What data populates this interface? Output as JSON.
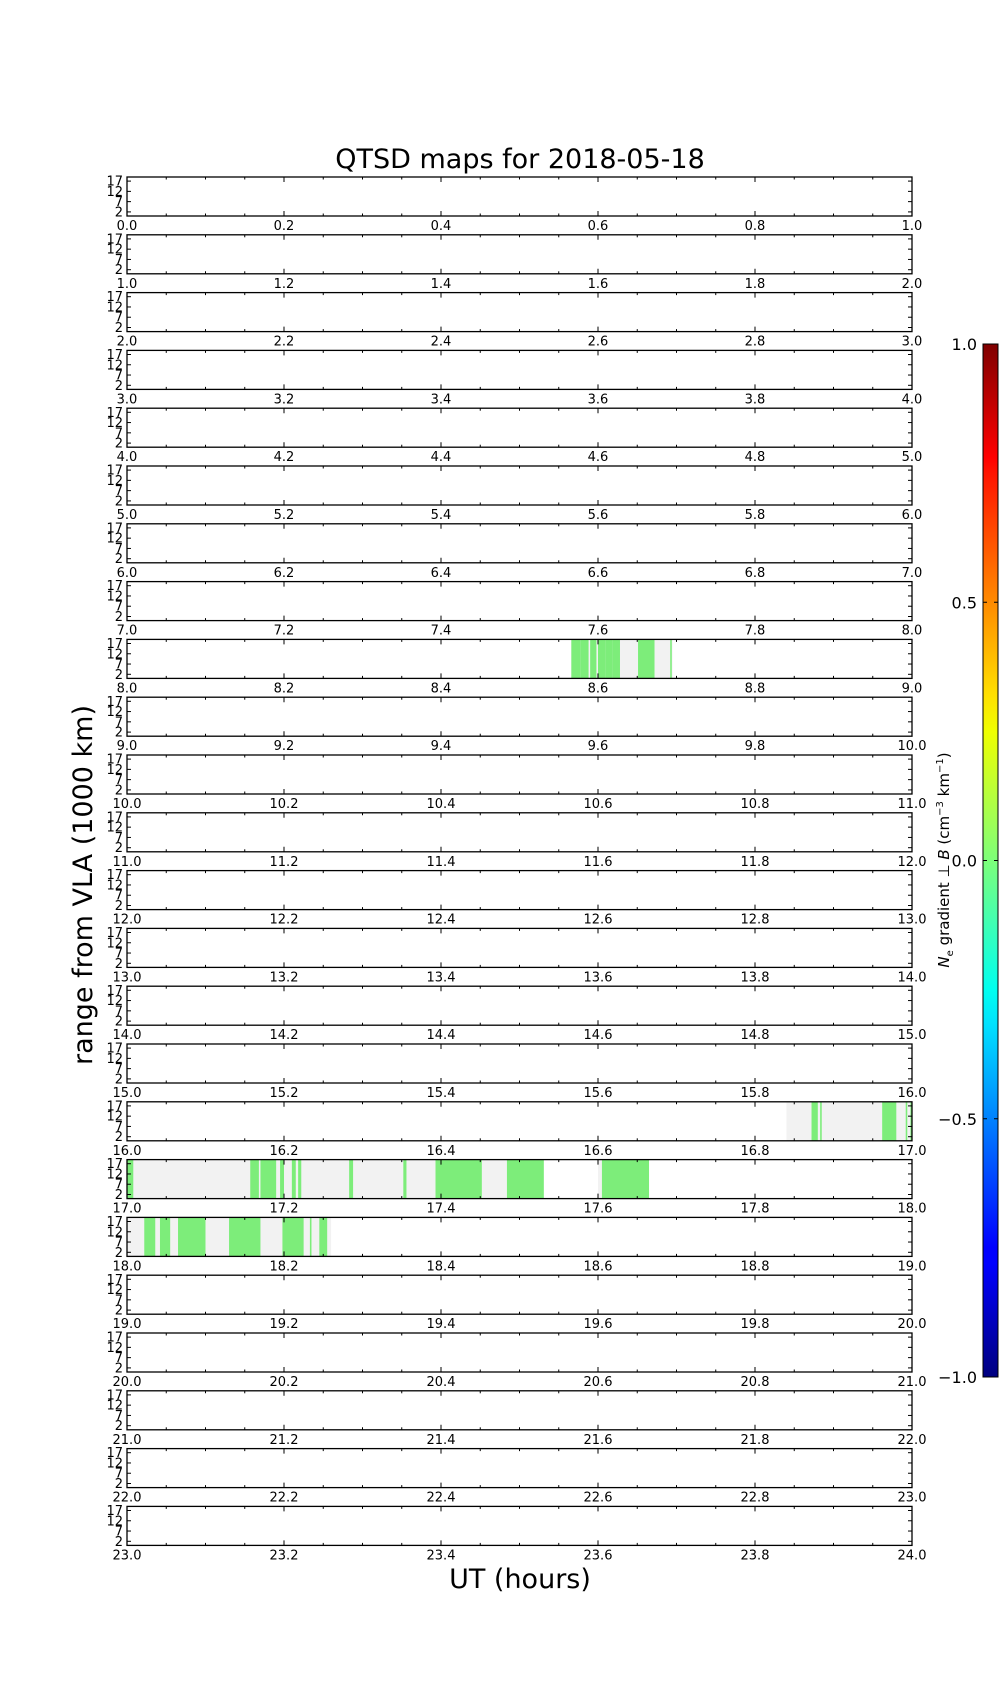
{
  "chart_data": {
    "type": "heatmap",
    "title": "QTSD maps for 2018-05-18",
    "xlabel": "UT (hours)",
    "ylabel": "range from VLA (1000 km)",
    "y_ticks": [
      "17",
      "12",
      "7",
      "2"
    ],
    "colorbar": {
      "label": "N_e gradient ⊥ B (cm⁻³ km⁻¹)",
      "label_parts": {
        "ne": "N",
        "ne_sub": "e",
        "gradient": " gradient ⊥ ",
        "b": "B",
        "unit_open": " (cm",
        "unit_exp1": "−3",
        "unit_mid": " km",
        "unit_exp2": "−1",
        "unit_close": ")"
      },
      "ticks": [
        "1.0",
        "0.5",
        "0.0",
        "−0.5",
        "−1.0"
      ],
      "vmin": -1.0,
      "vmax": 1.0,
      "colormap": "jet"
    },
    "panels": [
      {
        "x_range": [
          0,
          1
        ],
        "x_ticks": [
          "0.0",
          "0.2",
          "0.4",
          "0.6",
          "0.8",
          "1.0"
        ]
      },
      {
        "x_range": [
          1,
          2
        ],
        "x_ticks": [
          "1.0",
          "1.2",
          "1.4",
          "1.6",
          "1.8",
          "2.0"
        ]
      },
      {
        "x_range": [
          2,
          3
        ],
        "x_ticks": [
          "2.0",
          "2.2",
          "2.4",
          "2.6",
          "2.8",
          "3.0"
        ]
      },
      {
        "x_range": [
          3,
          4
        ],
        "x_ticks": [
          "3.0",
          "3.2",
          "3.4",
          "3.6",
          "3.8",
          "4.0"
        ]
      },
      {
        "x_range": [
          4,
          5
        ],
        "x_ticks": [
          "4.0",
          "4.2",
          "4.4",
          "4.6",
          "4.8",
          "5.0"
        ]
      },
      {
        "x_range": [
          5,
          6
        ],
        "x_ticks": [
          "5.0",
          "5.2",
          "5.4",
          "5.6",
          "5.8",
          "6.0"
        ]
      },
      {
        "x_range": [
          6,
          7
        ],
        "x_ticks": [
          "6.0",
          "6.2",
          "6.4",
          "6.6",
          "6.8",
          "7.0"
        ]
      },
      {
        "x_range": [
          7,
          8
        ],
        "x_ticks": [
          "7.0",
          "7.2",
          "7.4",
          "7.6",
          "7.8",
          "8.0"
        ]
      },
      {
        "x_range": [
          8,
          9
        ],
        "x_ticks": [
          "8.0",
          "8.2",
          "8.4",
          "8.6",
          "8.8",
          "9.0"
        ]
      },
      {
        "x_range": [
          9,
          10
        ],
        "x_ticks": [
          "9.0",
          "9.2",
          "9.4",
          "9.6",
          "9.8",
          "10.0"
        ]
      },
      {
        "x_range": [
          10,
          11
        ],
        "x_ticks": [
          "10.0",
          "10.2",
          "10.4",
          "10.6",
          "10.8",
          "11.0"
        ]
      },
      {
        "x_range": [
          11,
          12
        ],
        "x_ticks": [
          "11.0",
          "11.2",
          "11.4",
          "11.6",
          "11.8",
          "12.0"
        ]
      },
      {
        "x_range": [
          12,
          13
        ],
        "x_ticks": [
          "12.0",
          "12.2",
          "12.4",
          "12.6",
          "12.8",
          "13.0"
        ]
      },
      {
        "x_range": [
          13,
          14
        ],
        "x_ticks": [
          "13.0",
          "13.2",
          "13.4",
          "13.6",
          "13.8",
          "14.0"
        ]
      },
      {
        "x_range": [
          14,
          15
        ],
        "x_ticks": [
          "14.0",
          "14.2",
          "14.4",
          "14.6",
          "14.8",
          "15.0"
        ]
      },
      {
        "x_range": [
          15,
          16
        ],
        "x_ticks": [
          "15.0",
          "15.2",
          "15.4",
          "15.6",
          "15.8",
          "16.0"
        ]
      },
      {
        "x_range": [
          16,
          17
        ],
        "x_ticks": [
          "16.0",
          "16.2",
          "16.4",
          "16.6",
          "16.8",
          "17.0"
        ]
      },
      {
        "x_range": [
          17,
          18
        ],
        "x_ticks": [
          "17.0",
          "17.2",
          "17.4",
          "17.6",
          "17.8",
          "18.0"
        ]
      },
      {
        "x_range": [
          18,
          19
        ],
        "x_ticks": [
          "18.0",
          "18.2",
          "18.4",
          "18.6",
          "18.8",
          "19.0"
        ]
      },
      {
        "x_range": [
          19,
          20
        ],
        "x_ticks": [
          "19.0",
          "19.2",
          "19.4",
          "19.6",
          "19.8",
          "20.0"
        ]
      },
      {
        "x_range": [
          20,
          21
        ],
        "x_ticks": [
          "20.0",
          "20.2",
          "20.4",
          "20.6",
          "20.8",
          "21.0"
        ]
      },
      {
        "x_range": [
          21,
          22
        ],
        "x_ticks": [
          "21.0",
          "21.2",
          "21.4",
          "21.6",
          "21.8",
          "22.0"
        ]
      },
      {
        "x_range": [
          22,
          23
        ],
        "x_ticks": [
          "22.0",
          "22.2",
          "22.4",
          "22.6",
          "22.8",
          "23.0"
        ]
      },
      {
        "x_range": [
          23,
          24
        ],
        "x_ticks": [
          "23.0",
          "23.2",
          "23.4",
          "23.6",
          "23.8",
          "24.0"
        ]
      }
    ],
    "coverage_color": "#f2f2f2",
    "signal_color": "#7ded7a",
    "coverage_segments_ut": [
      [
        8.566,
        8.695
      ],
      [
        16.84,
        17.0
      ],
      [
        17.0,
        17.53
      ],
      [
        17.6,
        17.665
      ],
      [
        18.0,
        18.26
      ]
    ],
    "signal_segments_ut": [
      [
        8.566,
        8.578
      ],
      [
        8.578,
        8.588
      ],
      [
        8.59,
        8.598
      ],
      [
        8.6,
        8.61
      ],
      [
        8.61,
        8.618
      ],
      [
        8.618,
        8.628
      ],
      [
        8.651,
        8.672
      ],
      [
        8.692,
        8.694
      ],
      [
        16.872,
        16.88
      ],
      [
        16.883,
        16.885
      ],
      [
        16.962,
        16.98
      ],
      [
        16.992,
        16.994
      ],
      [
        16.998,
        17.0
      ],
      [
        17.0,
        17.008
      ],
      [
        17.157,
        17.168
      ],
      [
        17.17,
        17.19
      ],
      [
        17.195,
        17.2
      ],
      [
        17.21,
        17.215
      ],
      [
        17.218,
        17.222
      ],
      [
        17.283,
        17.288
      ],
      [
        17.352,
        17.356
      ],
      [
        17.393,
        17.452
      ],
      [
        17.484,
        17.531
      ],
      [
        17.605,
        17.665
      ],
      [
        18.022,
        18.036
      ],
      [
        18.042,
        18.055
      ],
      [
        18.065,
        18.1
      ],
      [
        18.13,
        18.17
      ],
      [
        18.198,
        18.225
      ],
      [
        18.233,
        18.235
      ],
      [
        18.245,
        18.255
      ]
    ]
  }
}
